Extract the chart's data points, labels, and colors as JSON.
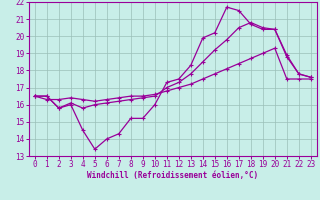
{
  "xlabel": "Windchill (Refroidissement éolien,°C)",
  "xlim": [
    -0.5,
    23.5
  ],
  "ylim": [
    13,
    22
  ],
  "yticks": [
    13,
    14,
    15,
    16,
    17,
    18,
    19,
    20,
    21,
    22
  ],
  "xticks": [
    0,
    1,
    2,
    3,
    4,
    5,
    6,
    7,
    8,
    9,
    10,
    11,
    12,
    13,
    14,
    15,
    16,
    17,
    18,
    19,
    20,
    21,
    22,
    23
  ],
  "bg_color": "#c8eee8",
  "line_color": "#990099",
  "grid_color": "#9bbfb8",
  "line1_y": [
    16.5,
    16.5,
    15.8,
    16.0,
    14.5,
    13.4,
    14.0,
    14.3,
    15.2,
    15.2,
    16.0,
    17.3,
    17.5,
    18.3,
    19.9,
    20.2,
    21.7,
    21.5,
    20.7,
    20.4,
    20.4,
    18.8,
    17.8,
    17.6
  ],
  "line2_y": [
    16.5,
    16.3,
    16.3,
    16.4,
    16.3,
    16.2,
    16.3,
    16.4,
    16.5,
    16.5,
    16.6,
    16.8,
    17.0,
    17.2,
    17.5,
    17.8,
    18.1,
    18.4,
    18.7,
    19.0,
    19.3,
    17.5,
    17.5,
    17.5
  ],
  "line3_y": [
    16.5,
    16.5,
    15.8,
    16.1,
    15.8,
    16.0,
    16.1,
    16.2,
    16.3,
    16.4,
    16.5,
    17.0,
    17.3,
    17.8,
    18.5,
    19.2,
    19.8,
    20.5,
    20.8,
    20.5,
    20.4,
    18.9,
    17.8,
    17.6
  ],
  "tick_fontsize": 5.5,
  "xlabel_fontsize": 5.5
}
